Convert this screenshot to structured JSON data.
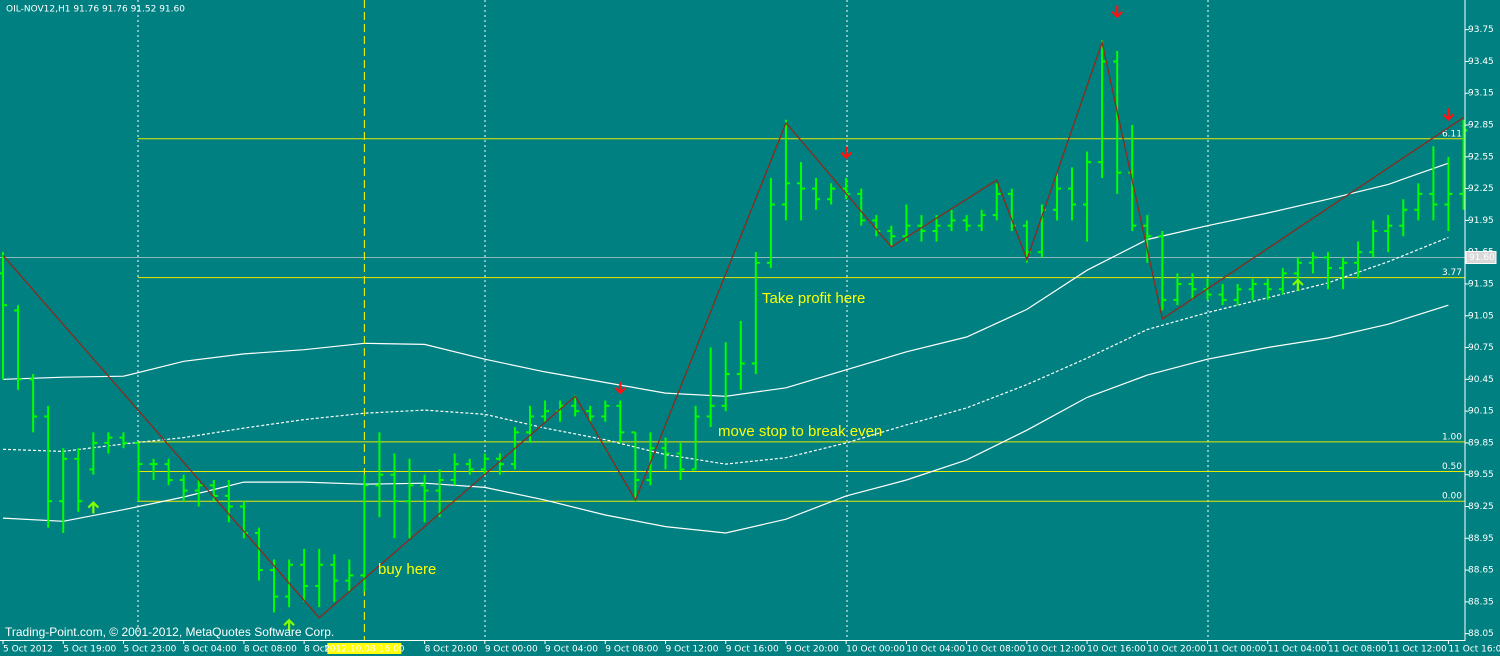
{
  "chart_data": {
    "type": "ohlc",
    "title": "OIL-NOV12,H1  91.76 91.76 91.52 91.60",
    "footer": "Trading-Point.com, © 2001-2012, MetaQuotes Software Corp.",
    "color": "#00ff00",
    "xlim": [
      -0.2,
      97.1
    ],
    "ylim": [
      87.99,
      94.03
    ],
    "yticks": [
      93.75,
      93.45,
      93.15,
      92.85,
      92.55,
      92.25,
      91.95,
      91.65,
      91.35,
      91.05,
      90.75,
      90.45,
      90.15,
      89.85,
      89.55,
      89.25,
      88.95,
      88.65,
      88.35,
      88.05
    ],
    "xticks": [
      {
        "value": 0,
        "label": "5 Oct 2012"
      },
      {
        "value": 4,
        "label": "5 Oct 19:00"
      },
      {
        "value": 8,
        "label": "5 Oct 23:00"
      },
      {
        "value": 12,
        "label": "8 Oct 04:00"
      },
      {
        "value": 16,
        "label": "8 Oct 08:00"
      },
      {
        "value": 20,
        "label": "8 Oct"
      },
      {
        "value": 28,
        "label": "8 Oct 20:00"
      },
      {
        "value": 32,
        "label": "9 Oct 00:00"
      },
      {
        "value": 36,
        "label": "9 Oct 04:00"
      },
      {
        "value": 40,
        "label": "9 Oct 08:00"
      },
      {
        "value": 44,
        "label": "9 Oct 12:00"
      },
      {
        "value": 48,
        "label": "9 Oct 16:00"
      },
      {
        "value": 52,
        "label": "9 Oct 20:00"
      },
      {
        "value": 56,
        "label": "10 Oct 00:00"
      },
      {
        "value": 60,
        "label": "10 Oct 04:00"
      },
      {
        "value": 64,
        "label": "10 Oct 08:00"
      },
      {
        "value": 68,
        "label": "10 Oct 12:00"
      },
      {
        "value": 72,
        "label": "10 Oct 16:00"
      },
      {
        "value": 76,
        "label": "10 Oct 20:00"
      },
      {
        "value": 80,
        "label": "11 Oct 00:00"
      },
      {
        "value": 84,
        "label": "11 Oct 04:00"
      },
      {
        "value": 88,
        "label": "11 Oct 08:00"
      },
      {
        "value": 92,
        "label": "11 Oct 12:00"
      },
      {
        "value": 96,
        "label": "11 Oct 16:00"
      }
    ],
    "open": [
      91.45,
      91.1,
      90.45,
      90.1,
      89.3,
      89.7,
      89.6,
      89.85,
      89.9,
      89.85,
      89.65,
      89.65,
      89.5,
      89.4,
      89.45,
      89.35,
      89.25,
      89.0,
      88.65,
      88.4,
      88.7,
      88.5,
      88.7,
      88.55,
      88.6,
      89.45,
      89.55,
      89.3,
      89.45,
      89.4,
      89.5,
      89.65,
      89.6,
      89.7,
      89.65,
      89.95,
      90.1,
      90.15,
      90.2,
      90.15,
      90.1,
      90.2,
      89.95,
      89.5,
      89.8,
      89.75,
      89.6,
      90.1,
      90.2,
      90.5,
      90.6,
      91.55,
      92.1,
      92.3,
      92.25,
      92.15,
      92.25,
      92.2,
      91.95,
      91.85,
      91.8,
      91.9,
      91.85,
      91.9,
      91.95,
      91.9,
      92.0,
      92.2,
      91.9,
      91.65,
      92.05,
      92.25,
      92.1,
      92.5,
      93.45,
      92.4,
      91.9,
      91.8,
      91.2,
      91.35,
      91.3,
      91.25,
      91.2,
      91.3,
      91.35,
      91.3,
      91.45,
      91.55,
      91.6,
      91.5,
      91.55,
      91.65,
      91.85,
      91.9,
      92.05,
      92.2,
      92.1,
      92.2
    ],
    "high": [
      91.65,
      91.15,
      90.5,
      90.2,
      89.8,
      89.8,
      89.95,
      89.95,
      89.95,
      89.85,
      89.7,
      89.7,
      89.55,
      89.5,
      89.5,
      89.5,
      89.3,
      89.05,
      88.75,
      88.75,
      88.85,
      88.85,
      88.8,
      88.75,
      89.55,
      89.95,
      89.75,
      89.7,
      89.55,
      89.6,
      89.75,
      89.7,
      89.75,
      89.75,
      90.0,
      90.2,
      90.25,
      90.25,
      90.3,
      90.2,
      90.25,
      90.25,
      89.95,
      89.95,
      89.9,
      89.85,
      90.2,
      90.75,
      90.8,
      91.0,
      91.65,
      92.35,
      92.9,
      92.5,
      92.35,
      92.3,
      92.35,
      92.25,
      92.0,
      91.9,
      92.1,
      92.0,
      92.0,
      92.05,
      92.0,
      92.05,
      92.3,
      92.25,
      91.95,
      92.1,
      92.4,
      92.45,
      92.6,
      93.65,
      93.55,
      92.85,
      92.0,
      91.85,
      91.45,
      91.45,
      91.4,
      91.35,
      91.35,
      91.4,
      91.4,
      91.5,
      91.6,
      91.65,
      91.65,
      91.6,
      91.75,
      91.95,
      92.0,
      92.15,
      92.3,
      92.65,
      92.55,
      92.9
    ],
    "low": [
      90.45,
      90.35,
      89.95,
      89.05,
      89.0,
      89.2,
      89.55,
      89.75,
      89.8,
      89.3,
      89.5,
      89.45,
      89.3,
      89.25,
      89.3,
      89.1,
      88.95,
      88.55,
      88.25,
      88.3,
      88.35,
      88.3,
      88.35,
      88.45,
      88.45,
      89.15,
      88.95,
      88.95,
      89.1,
      89.15,
      89.45,
      89.55,
      89.55,
      89.55,
      89.6,
      89.85,
      90.05,
      90.05,
      90.1,
      90.05,
      90.05,
      89.85,
      89.3,
      89.45,
      89.6,
      89.5,
      89.6,
      90.0,
      90.15,
      90.35,
      90.5,
      91.5,
      91.95,
      91.95,
      92.05,
      92.1,
      92.15,
      91.9,
      91.8,
      91.7,
      91.75,
      91.75,
      91.75,
      91.85,
      91.85,
      91.85,
      91.95,
      91.85,
      91.55,
      91.6,
      91.95,
      91.95,
      91.75,
      92.35,
      92.2,
      91.85,
      91.55,
      91.1,
      91.15,
      91.2,
      91.2,
      91.15,
      91.15,
      91.2,
      91.2,
      91.25,
      91.35,
      91.45,
      91.3,
      91.3,
      91.4,
      91.6,
      91.65,
      91.8,
      91.95,
      91.95,
      91.85,
      92.05
    ],
    "close": [
      91.15,
      90.45,
      90.1,
      89.3,
      89.7,
      89.3,
      89.85,
      89.9,
      89.85,
      89.65,
      89.65,
      89.5,
      89.4,
      89.45,
      89.35,
      89.25,
      89.0,
      88.65,
      88.4,
      88.7,
      88.5,
      88.7,
      88.55,
      88.6,
      89.45,
      89.55,
      89.3,
      89.45,
      89.4,
      89.5,
      89.65,
      89.6,
      89.7,
      89.65,
      89.95,
      90.1,
      90.15,
      90.2,
      90.15,
      90.1,
      90.2,
      89.95,
      89.5,
      89.8,
      89.75,
      89.6,
      90.1,
      90.2,
      90.5,
      90.6,
      91.55,
      92.1,
      92.3,
      92.25,
      92.15,
      92.25,
      92.2,
      91.95,
      91.85,
      91.8,
      91.9,
      91.85,
      91.9,
      91.95,
      91.9,
      92.0,
      92.2,
      91.9,
      91.65,
      92.05,
      92.25,
      92.1,
      92.5,
      93.45,
      92.4,
      91.9,
      91.8,
      91.2,
      91.35,
      91.3,
      91.25,
      91.2,
      91.3,
      91.35,
      91.3,
      91.45,
      91.55,
      91.6,
      91.5,
      91.55,
      91.65,
      91.85,
      91.9,
      92.05,
      92.2,
      92.1,
      92.2,
      92.8
    ],
    "bands": {
      "x": [
        0,
        4,
        8,
        12,
        16,
        20,
        24,
        28,
        32,
        36,
        40,
        44,
        48,
        52,
        56,
        60,
        64,
        68,
        72,
        76,
        80,
        84,
        88,
        92,
        96
      ],
      "upper": [
        90.45,
        90.47,
        90.48,
        90.62,
        90.69,
        90.73,
        90.79,
        90.78,
        90.64,
        90.52,
        90.42,
        90.32,
        90.29,
        90.37,
        90.54,
        90.71,
        90.85,
        91.11,
        91.48,
        91.77,
        91.9,
        92.02,
        92.15,
        92.29,
        92.49
      ],
      "middle": [
        89.79,
        89.77,
        89.84,
        89.9,
        89.99,
        90.07,
        90.13,
        90.16,
        90.12,
        89.99,
        89.88,
        89.74,
        89.65,
        89.71,
        89.85,
        90.02,
        90.18,
        90.4,
        90.65,
        90.92,
        91.08,
        91.22,
        91.36,
        91.56,
        91.79
      ],
      "lower": [
        89.14,
        89.11,
        89.22,
        89.34,
        89.48,
        89.48,
        89.46,
        89.47,
        89.43,
        89.31,
        89.17,
        89.06,
        89.0,
        89.13,
        89.35,
        89.5,
        89.69,
        89.97,
        90.28,
        90.49,
        90.64,
        90.75,
        90.84,
        90.97,
        91.15
      ]
    },
    "zigzag": {
      "color": "#8b2b1c",
      "x": [
        0,
        21,
        38,
        42,
        52,
        59,
        66,
        68,
        73,
        77,
        97
      ],
      "values": [
        91.62,
        88.2,
        90.29,
        89.31,
        92.87,
        91.7,
        92.33,
        91.58,
        93.63,
        91.02,
        92.92
      ]
    },
    "fractals": [
      {
        "x": 6,
        "value": 89.24,
        "dir": "up"
      },
      {
        "x": 19,
        "value": 88.13,
        "dir": "up"
      },
      {
        "x": 86,
        "value": 91.34,
        "dir": "up"
      },
      {
        "x": 41,
        "value": 90.37,
        "dir": "down"
      },
      {
        "x": 56,
        "value": 92.59,
        "dir": "down"
      },
      {
        "x": 74,
        "value": 93.92,
        "dir": "down"
      },
      {
        "x": 96,
        "value": 92.95,
        "dir": "down"
      }
    ],
    "levels": [
      {
        "value": 92.72,
        "label": "6.11"
      },
      {
        "value": 91.41,
        "label": "3.77"
      },
      {
        "value": 89.86,
        "label": "1.00"
      },
      {
        "value": 89.58,
        "label": "0.50"
      },
      {
        "value": 89.3,
        "label": "0.00"
      }
    ],
    "price": {
      "value": 91.6,
      "label": "91.60"
    },
    "crosshair": {
      "x": 24,
      "label": "2012.10.08 16:00"
    },
    "annotations": [
      "buy here",
      "move stop to break even",
      "Take profit here"
    ]
  }
}
